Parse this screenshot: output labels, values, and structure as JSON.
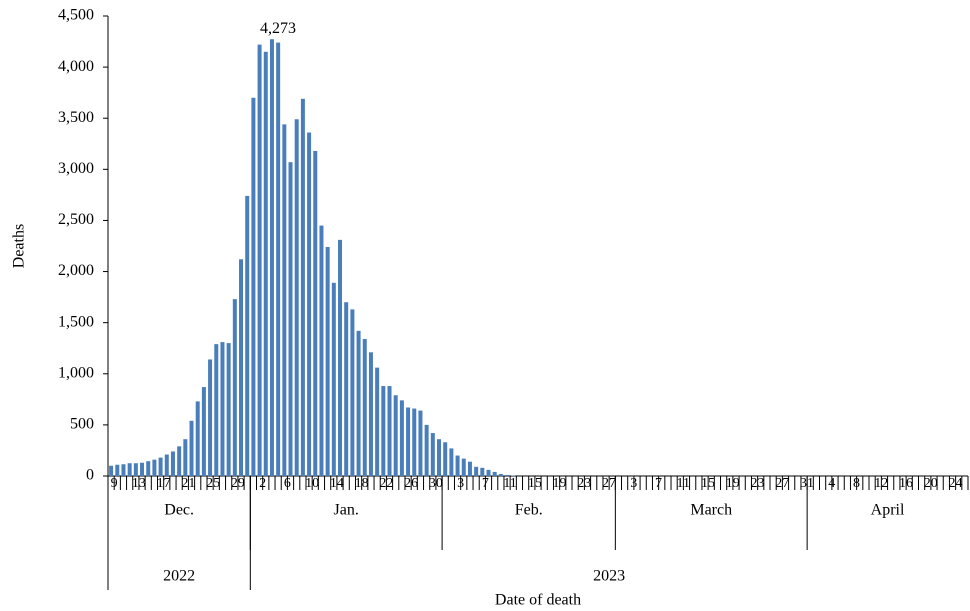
{
  "chart_data": {
    "type": "bar",
    "y_label": "Deaths",
    "x_label": "Date of death",
    "color": "#4a7ebb",
    "ylim": [
      0,
      4500
    ],
    "yticks": [
      0,
      500,
      {
        "value": 1000,
        "label": "1,000"
      },
      {
        "value": 1500,
        "label": "1,500"
      },
      {
        "value": 2000,
        "label": "2,000"
      },
      {
        "value": 2500,
        "label": "2,500"
      },
      {
        "value": 3000,
        "label": "3,000"
      },
      {
        "value": 3500,
        "label": "3,500"
      },
      {
        "value": 4000,
        "label": "4,000"
      },
      {
        "value": 4500,
        "label": "4,500"
      }
    ],
    "years": [
      {
        "label": "2022",
        "months": [
          {
            "label": "Dec.",
            "days": [
              9,
              null,
              null,
              null,
              13,
              null,
              null,
              null,
              17,
              null,
              null,
              null,
              21,
              null,
              null,
              null,
              25,
              null,
              null,
              null,
              29,
              null,
              null
            ]
          }
        ]
      },
      {
        "label": "2023",
        "months": [
          {
            "label": "Jan.",
            "days": [
              null,
              2,
              null,
              null,
              null,
              6,
              null,
              null,
              null,
              10,
              null,
              null,
              null,
              14,
              null,
              null,
              null,
              18,
              null,
              null,
              null,
              22,
              null,
              null,
              null,
              26,
              null,
              null,
              null,
              30,
              null
            ]
          },
          {
            "label": "Feb.",
            "days": [
              null,
              null,
              3,
              null,
              null,
              null,
              7,
              null,
              null,
              null,
              11,
              null,
              null,
              null,
              15,
              null,
              null,
              null,
              19,
              null,
              null,
              null,
              23,
              null,
              null,
              null,
              27,
              null
            ]
          },
          {
            "label": "March",
            "days": [
              null,
              null,
              3,
              null,
              null,
              null,
              7,
              null,
              null,
              null,
              11,
              null,
              null,
              null,
              15,
              null,
              null,
              null,
              19,
              null,
              null,
              null,
              23,
              null,
              null,
              null,
              27,
              null,
              null,
              null,
              31
            ]
          },
          {
            "label": "April",
            "days": [
              null,
              null,
              null,
              4,
              null,
              null,
              null,
              8,
              null,
              null,
              null,
              12,
              null,
              null,
              null,
              16,
              null,
              null,
              null,
              20,
              null,
              null,
              null,
              24,
              null,
              null
            ]
          }
        ]
      }
    ],
    "values": [
      100,
      110,
      115,
      125,
      125,
      130,
      145,
      160,
      180,
      210,
      240,
      290,
      360,
      540,
      730,
      870,
      1140,
      1290,
      1310,
      1300,
      1730,
      2120,
      2740,
      3700,
      4220,
      4150,
      4273,
      4240,
      3440,
      3070,
      3490,
      3690,
      3360,
      3180,
      2450,
      2240,
      1890,
      2310,
      1700,
      1630,
      1420,
      1340,
      1210,
      1060,
      880,
      880,
      790,
      740,
      670,
      660,
      640,
      500,
      420,
      360,
      330,
      270,
      200,
      170,
      140,
      90,
      80,
      60,
      40,
      20,
      10,
      5,
      0,
      0,
      0,
      0,
      0,
      0,
      0,
      0,
      0,
      0,
      0,
      0,
      0,
      0,
      0,
      0,
      0,
      0,
      0,
      0,
      0,
      0,
      0,
      0,
      0,
      0,
      0,
      0,
      0,
      0,
      0,
      0,
      0,
      0,
      0,
      0,
      0,
      0,
      0,
      0,
      0,
      0,
      0,
      0,
      0,
      0,
      0,
      0,
      0,
      0,
      0,
      0,
      0,
      0,
      0,
      0,
      0,
      0,
      0,
      0,
      0,
      0,
      0,
      0,
      0,
      0,
      0,
      0,
      0,
      0,
      0,
      0,
      0
    ],
    "value_labels": [
      null,
      null,
      null,
      null,
      null,
      null,
      null,
      null,
      null,
      null,
      null,
      null,
      null,
      null,
      null,
      null,
      null,
      null,
      null,
      null,
      null,
      null,
      null,
      null,
      null,
      null,
      "4,273",
      null,
      null,
      null,
      null,
      null,
      null,
      null,
      null,
      null,
      null,
      null,
      null,
      null,
      null,
      null,
      null,
      null,
      null,
      null,
      null,
      null,
      null,
      null,
      null,
      null,
      null,
      null,
      null,
      null,
      null,
      null,
      null,
      null,
      null,
      null,
      null,
      null,
      null,
      null,
      null,
      null,
      null,
      null,
      null,
      null,
      null,
      null,
      null,
      null,
      null,
      null,
      null,
      null,
      null,
      null,
      null,
      null,
      null,
      null,
      null,
      null,
      null,
      null,
      null,
      null,
      null,
      null,
      null,
      null,
      null,
      null,
      null,
      null,
      null,
      null,
      null,
      null,
      null,
      null,
      null,
      null,
      null,
      null,
      null,
      null,
      null,
      null,
      null,
      null,
      null,
      null,
      null,
      null,
      null,
      null,
      null,
      null,
      null,
      null,
      null,
      null,
      null,
      null,
      null,
      null,
      null,
      null,
      null,
      null,
      null,
      null,
      null
    ]
  }
}
